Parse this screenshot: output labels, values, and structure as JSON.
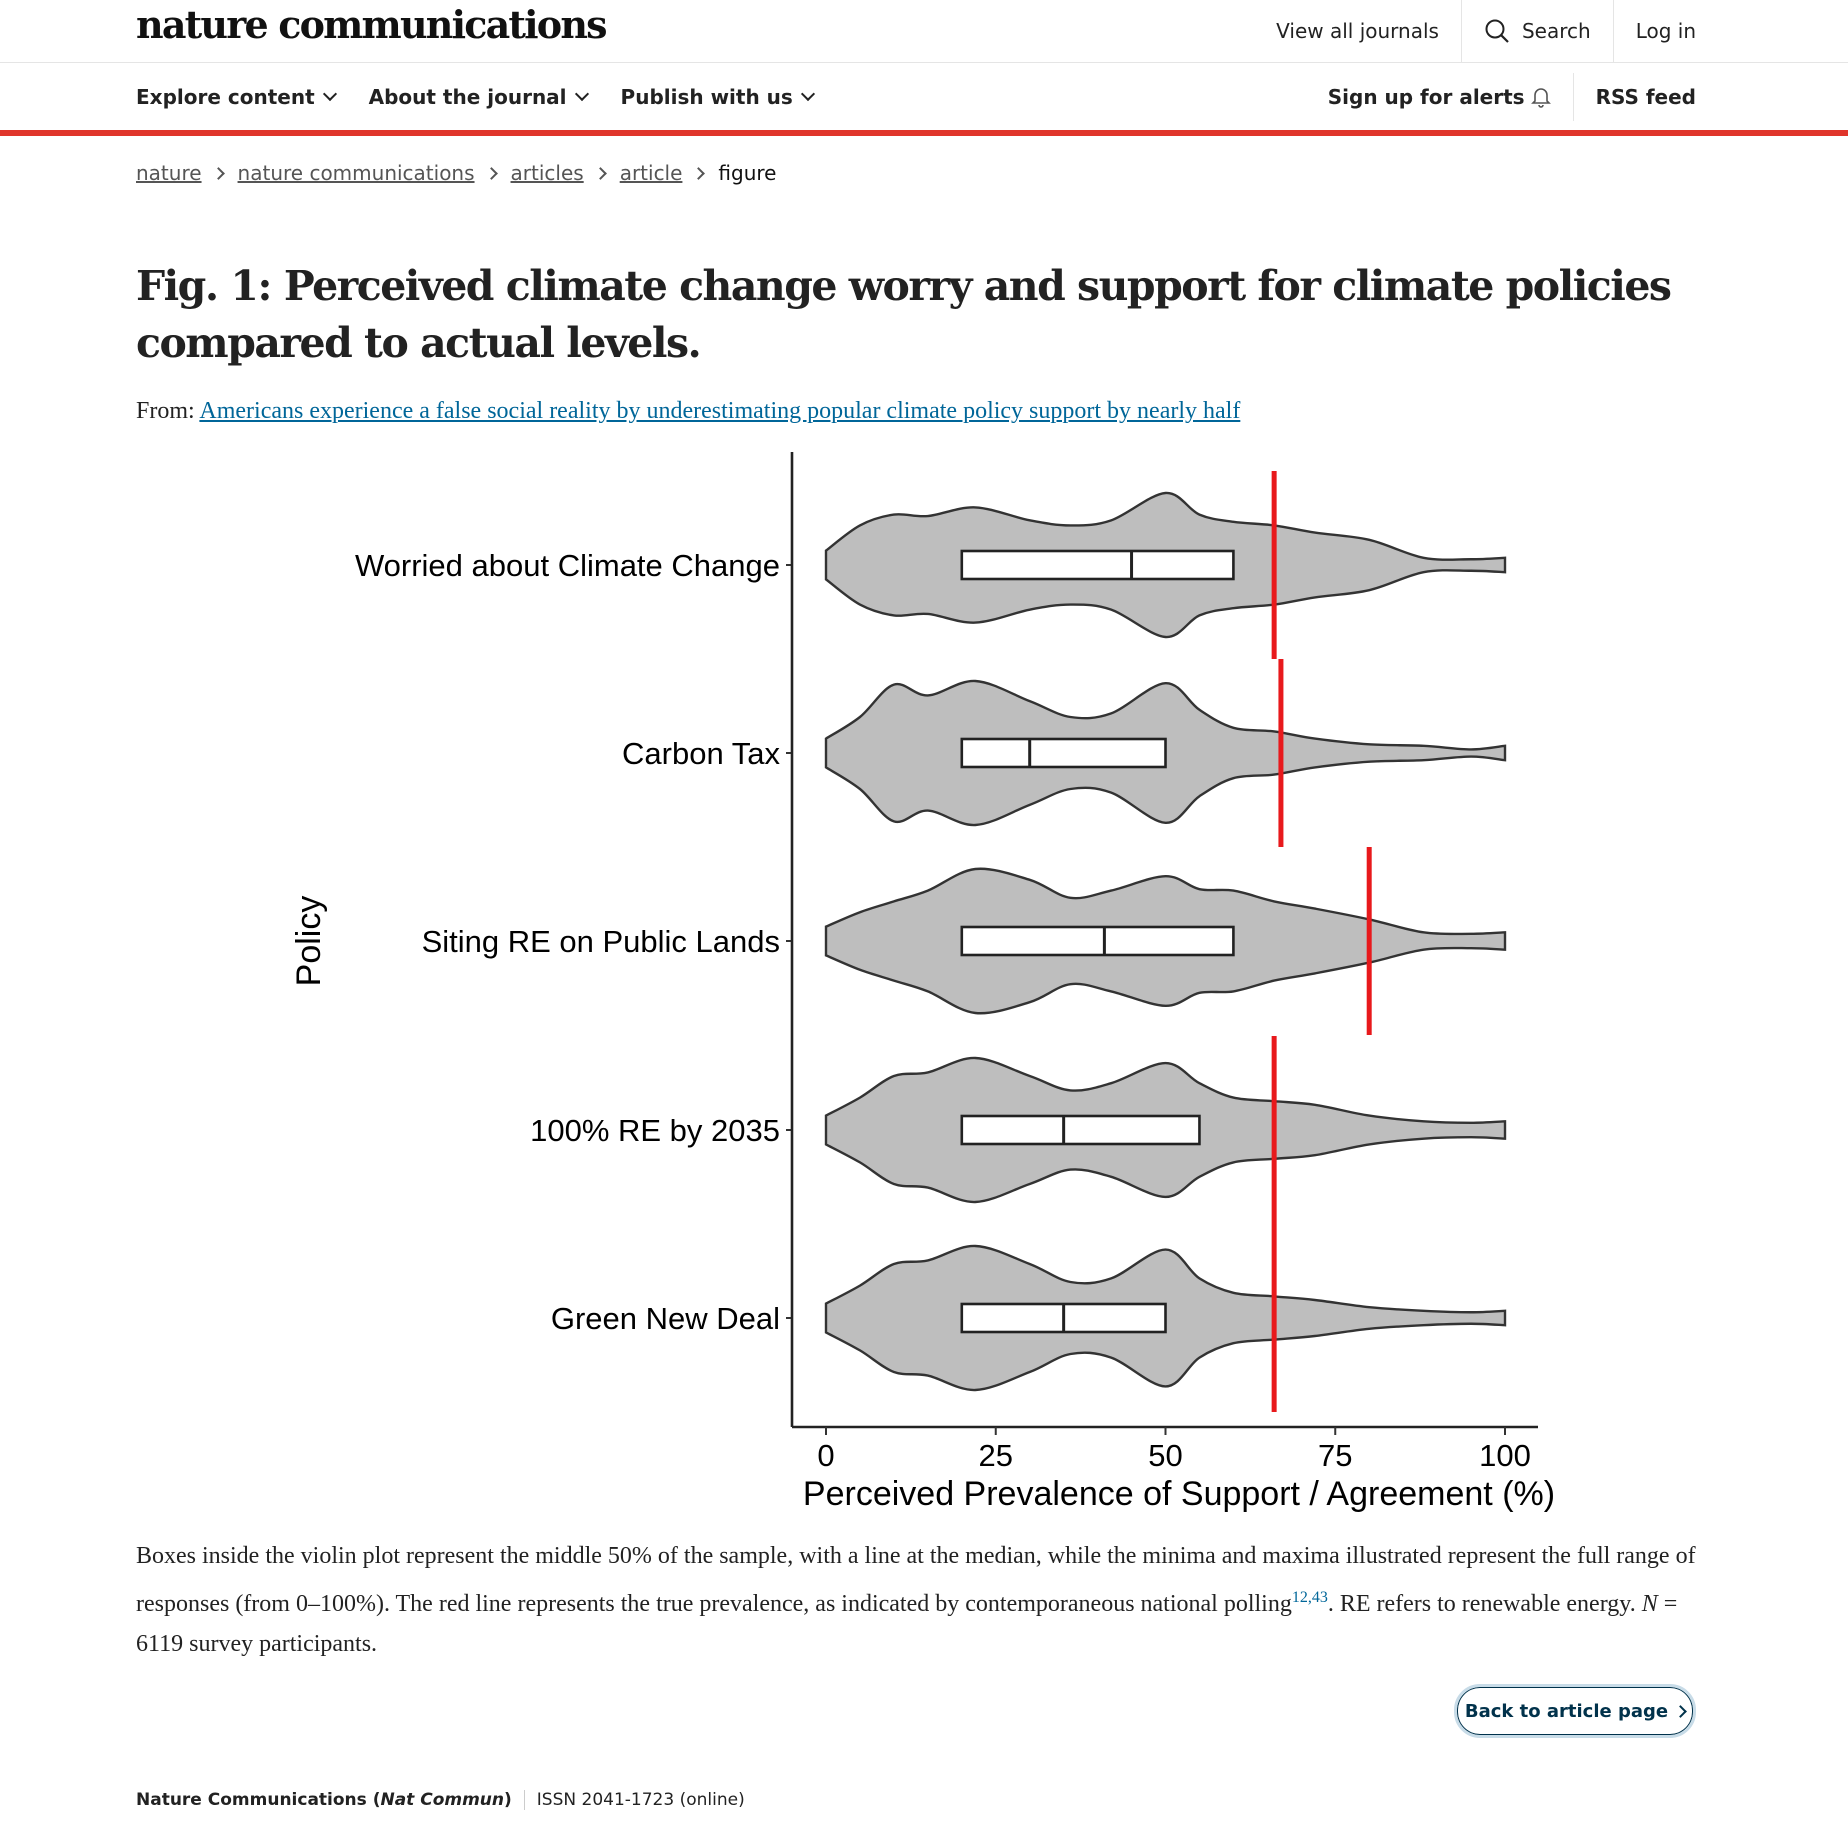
{
  "header": {
    "logo": "nature communications",
    "view_all": "View all journals",
    "search": "Search",
    "login": "Log in"
  },
  "nav": {
    "explore": "Explore content",
    "about": "About the journal",
    "publish": "Publish with us",
    "alerts": "Sign up for alerts",
    "rss": "RSS feed"
  },
  "breadcrumb": [
    "nature",
    "nature communications",
    "articles",
    "article",
    "figure"
  ],
  "figure": {
    "title": "Fig. 1: Perceived climate change worry and support for climate policies compared to actual levels.",
    "from_label": "From:",
    "from_link": "Americans experience a false social reality by underestimating popular climate policy support by nearly half",
    "caption_part1": "Boxes inside the violin plot represent the middle 50% of the sample, with a line at the median, while the minima and maxima illustrated represent the full range of responses (from 0–100%). The red line represents the true prevalence, as indicated by contemporaneous national polling",
    "caption_refs": "12,43",
    "caption_part2": ". RE refers to renewable energy. ",
    "caption_n": "N",
    "caption_part3": " = 6119 survey participants.",
    "back_button": "Back to article page"
  },
  "footer": {
    "journal": "Nature Communications (",
    "abbr": "Nat Commun",
    "close": ")",
    "issn": "ISSN 2041-1723 (online)"
  },
  "colors": {
    "accent_red": "#e0352b",
    "link": "#006699",
    "violin_fill": "#bebebe",
    "true_line": "#e8191c"
  },
  "chart_data": {
    "type": "violin",
    "ylabel": "Policy",
    "xlabel": "Perceived Prevalence of Support / Agreement (%)",
    "xlim": [
      0,
      100
    ],
    "xticks": [
      0,
      25,
      50,
      75,
      100
    ],
    "categories": [
      "Worried about Climate Change",
      "Carbon Tax",
      "Siting RE on Public Lands",
      "100% RE by 2035",
      "Green New Deal"
    ],
    "box_q1": [
      20,
      20,
      20,
      20,
      20
    ],
    "box_median": [
      45,
      30,
      41,
      35,
      35
    ],
    "box_q3": [
      60,
      50,
      60,
      55,
      50
    ],
    "true_prevalence": [
      66,
      67,
      80,
      66,
      66
    ],
    "density_profile": [
      [
        [
          0,
          0.2
        ],
        [
          5,
          0.55
        ],
        [
          10,
          0.7
        ],
        [
          15,
          0.68
        ],
        [
          22,
          0.8
        ],
        [
          30,
          0.62
        ],
        [
          36,
          0.55
        ],
        [
          42,
          0.62
        ],
        [
          50,
          1.0
        ],
        [
          55,
          0.7
        ],
        [
          60,
          0.6
        ],
        [
          66,
          0.55
        ],
        [
          72,
          0.45
        ],
        [
          80,
          0.35
        ],
        [
          88,
          0.1
        ],
        [
          95,
          0.08
        ],
        [
          100,
          0.1
        ]
      ],
      [
        [
          0,
          0.2
        ],
        [
          5,
          0.5
        ],
        [
          10,
          0.95
        ],
        [
          15,
          0.8
        ],
        [
          22,
          1.0
        ],
        [
          30,
          0.72
        ],
        [
          36,
          0.5
        ],
        [
          42,
          0.55
        ],
        [
          50,
          0.97
        ],
        [
          55,
          0.6
        ],
        [
          60,
          0.35
        ],
        [
          66,
          0.3
        ],
        [
          72,
          0.2
        ],
        [
          80,
          0.12
        ],
        [
          88,
          0.1
        ],
        [
          95,
          0.05
        ],
        [
          100,
          0.1
        ]
      ],
      [
        [
          0,
          0.2
        ],
        [
          5,
          0.4
        ],
        [
          10,
          0.55
        ],
        [
          15,
          0.7
        ],
        [
          22,
          1.0
        ],
        [
          30,
          0.85
        ],
        [
          36,
          0.6
        ],
        [
          42,
          0.7
        ],
        [
          50,
          0.9
        ],
        [
          55,
          0.72
        ],
        [
          60,
          0.7
        ],
        [
          66,
          0.55
        ],
        [
          72,
          0.45
        ],
        [
          80,
          0.3
        ],
        [
          88,
          0.12
        ],
        [
          95,
          0.1
        ],
        [
          100,
          0.12
        ]
      ],
      [
        [
          0,
          0.2
        ],
        [
          5,
          0.45
        ],
        [
          10,
          0.75
        ],
        [
          15,
          0.8
        ],
        [
          22,
          1.0
        ],
        [
          30,
          0.75
        ],
        [
          36,
          0.55
        ],
        [
          42,
          0.65
        ],
        [
          50,
          0.93
        ],
        [
          55,
          0.65
        ],
        [
          60,
          0.45
        ],
        [
          66,
          0.4
        ],
        [
          72,
          0.35
        ],
        [
          80,
          0.2
        ],
        [
          88,
          0.12
        ],
        [
          95,
          0.1
        ],
        [
          100,
          0.12
        ]
      ],
      [
        [
          0,
          0.2
        ],
        [
          5,
          0.45
        ],
        [
          10,
          0.75
        ],
        [
          15,
          0.8
        ],
        [
          22,
          1.0
        ],
        [
          30,
          0.75
        ],
        [
          36,
          0.5
        ],
        [
          42,
          0.55
        ],
        [
          50,
          0.95
        ],
        [
          55,
          0.55
        ],
        [
          60,
          0.35
        ],
        [
          66,
          0.3
        ],
        [
          72,
          0.25
        ],
        [
          80,
          0.15
        ],
        [
          88,
          0.1
        ],
        [
          95,
          0.08
        ],
        [
          100,
          0.1
        ]
      ]
    ]
  }
}
